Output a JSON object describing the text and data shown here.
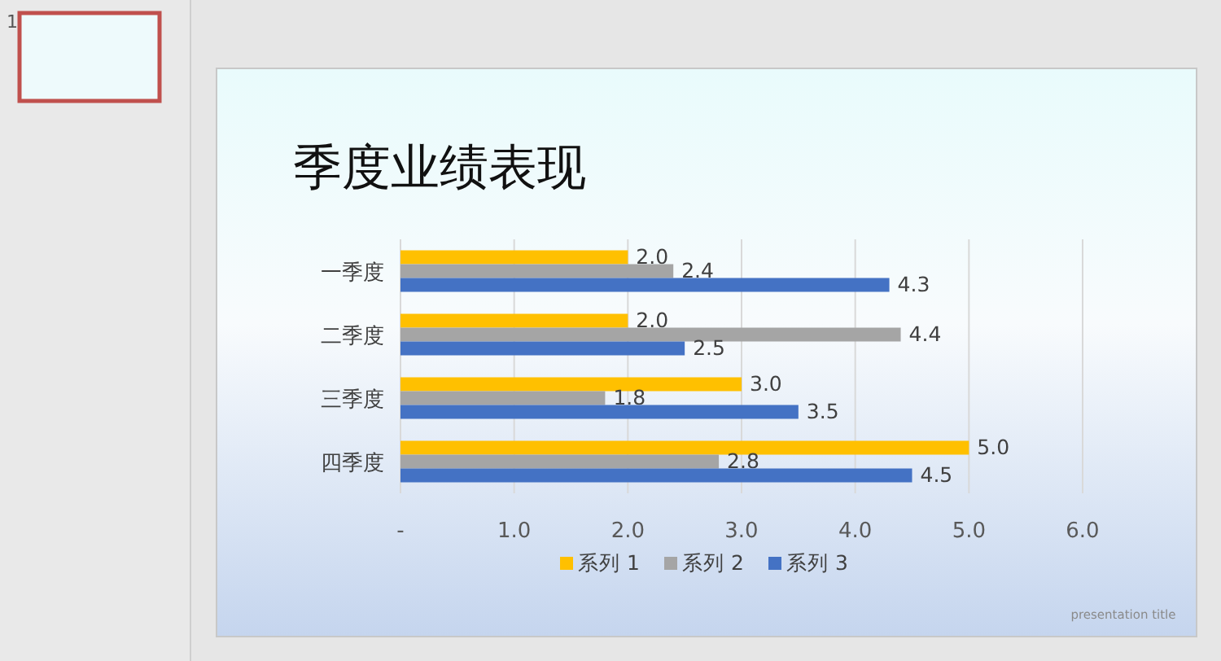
{
  "chart_data": {
    "type": "bar",
    "orientation": "horizontal",
    "title": "季度业绩表现",
    "categories": [
      "一季度",
      "二季度",
      "三季度",
      "四季度"
    ],
    "series": [
      {
        "name": "系列 1",
        "color": "#ffc000",
        "values": [
          2.0,
          2.0,
          3.0,
          5.0
        ],
        "value_labels": [
          "2.0",
          "2.0",
          "3.0",
          "5.0"
        ]
      },
      {
        "name": "系列 2",
        "color": "#a5a5a5",
        "values": [
          2.4,
          4.4,
          1.8,
          2.8
        ],
        "value_labels": [
          "2.4",
          "4.4",
          "1.8",
          "2.8"
        ]
      },
      {
        "name": "系列 3",
        "color": "#4472c4",
        "values": [
          4.3,
          2.5,
          3.5,
          4.5
        ],
        "value_labels": [
          "4.3",
          "2.5",
          "3.5",
          "4.5"
        ]
      }
    ],
    "xlim": [
      0,
      6
    ],
    "xticks": [
      {
        "value": 0,
        "label": "-"
      },
      {
        "value": 1,
        "label": "1.0"
      },
      {
        "value": 2,
        "label": "2.0"
      },
      {
        "value": 3,
        "label": "3.0"
      },
      {
        "value": 4,
        "label": "4.0"
      },
      {
        "value": 5,
        "label": "5.0"
      },
      {
        "value": 6,
        "label": "6.0"
      }
    ],
    "grid": "x",
    "legend": "bottom",
    "annotations": [
      "presentation title",
      "1"
    ]
  }
}
